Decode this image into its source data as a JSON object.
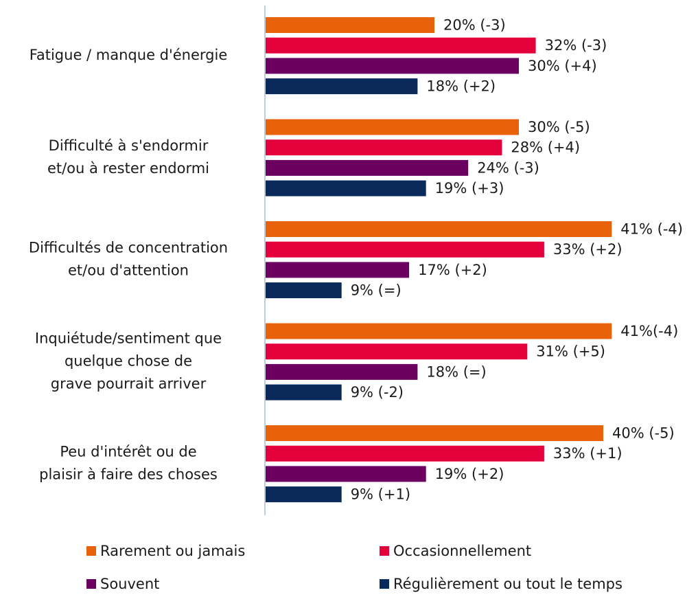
{
  "chart_data": {
    "type": "bar",
    "orientation": "horizontal",
    "categories": [
      [
        "Fatigue / manque d'énergie"
      ],
      [
        "Difficulté à s'endormir",
        "et/ou à rester endormi"
      ],
      [
        "Difficultés de concentration",
        "et/ou d'attention"
      ],
      [
        "Inquiétude/sentiment que",
        "quelque chose de",
        "grave pourrait arriver"
      ],
      [
        "Peu d'intérêt ou de",
        "plaisir à faire des choses"
      ]
    ],
    "series": [
      {
        "name": "Rarement ou jamais",
        "color": "#e8620a",
        "values": [
          20,
          30,
          41,
          41,
          40
        ],
        "value_labels": [
          "20% (-3)",
          "30% (-5)",
          "41% (-4)",
          "41%(-4)",
          "40% (-5)"
        ]
      },
      {
        "name": "Occasionnellement",
        "color": "#e4003a",
        "values": [
          32,
          28,
          33,
          31,
          33
        ],
        "value_labels": [
          "32% (-3)",
          "28% (+4)",
          "33% (+2)",
          "31% (+5)",
          "33% (+1)"
        ]
      },
      {
        "name": "Souvent",
        "color": "#6b0060",
        "values": [
          30,
          24,
          17,
          18,
          19
        ],
        "value_labels": [
          "30% (+4)",
          "24% (-3)",
          "17% (+2)",
          "18% (=)",
          "19% (+2)"
        ]
      },
      {
        "name": "Régulièrement ou tout le temps",
        "color": "#0b2a5c",
        "values": [
          18,
          19,
          9,
          9,
          9
        ],
        "value_labels": [
          "18% (+2)",
          "19% (+3)",
          "9% (=)",
          "9% (-2)",
          "9% (+1)"
        ]
      }
    ],
    "legend": "bottom"
  }
}
